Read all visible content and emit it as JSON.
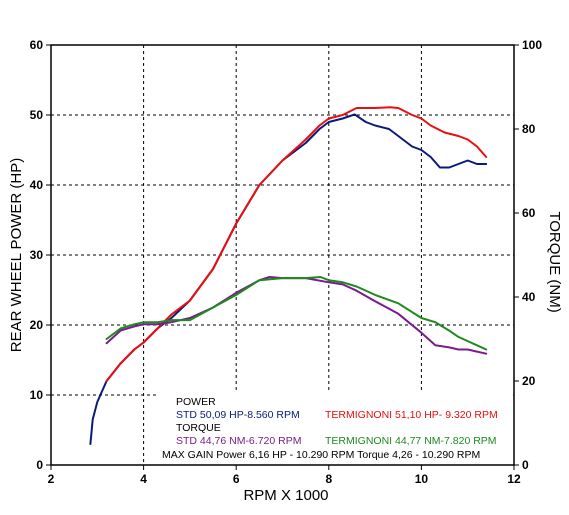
{
  "chart_data": {
    "type": "line",
    "xlabel": "RPM X 1000",
    "ylabel_left": "REAR WHEEL POWER (HP)",
    "ylabel_right": "TORQUE (NM)",
    "xlim": [
      2,
      12
    ],
    "ylim_left": [
      0,
      60
    ],
    "ylim_right": [
      0,
      100
    ],
    "x_ticks": [
      "2",
      "4",
      "6",
      "8",
      "10",
      "12"
    ],
    "y_left_ticks": [
      "0",
      "10",
      "20",
      "30",
      "40",
      "50",
      "60"
    ],
    "y_right_ticks": [
      "0",
      "20",
      "40",
      "60",
      "80",
      "100"
    ],
    "grid": true,
    "series": [
      {
        "name": "STD",
        "quantity": "power",
        "axis": "left",
        "color": "#0a1a7a",
        "x": [
          2.85,
          2.9,
          3.0,
          3.2,
          3.5,
          3.8,
          4.0,
          4.3,
          4.6,
          5.0,
          5.5,
          6.0,
          6.5,
          7.0,
          7.5,
          7.8,
          8.0,
          8.3,
          8.56,
          8.8,
          9.0,
          9.3,
          9.5,
          9.8,
          10.0,
          10.2,
          10.4,
          10.6,
          10.8,
          11.0,
          11.2,
          11.4
        ],
        "y": [
          3,
          6.5,
          9,
          12,
          14.5,
          16.5,
          17.5,
          19.5,
          21,
          23.5,
          28,
          34.5,
          40,
          43.5,
          46,
          48,
          49,
          49.5,
          50.09,
          49,
          48.5,
          48,
          47,
          45.5,
          45,
          44,
          42.5,
          42.5,
          43,
          43.5,
          43,
          43
        ]
      },
      {
        "name": "TERMIGNONI",
        "quantity": "power",
        "axis": "left",
        "color": "#e80f0f",
        "x": [
          3.2,
          3.5,
          3.8,
          4.0,
          4.3,
          4.6,
          5.0,
          5.5,
          6.0,
          6.5,
          7.0,
          7.5,
          7.8,
          8.0,
          8.3,
          8.6,
          9.0,
          9.32,
          9.5,
          9.8,
          10.0,
          10.2,
          10.5,
          10.8,
          11.0,
          11.2,
          11.4
        ],
        "y": [
          12,
          14.5,
          16.5,
          17.5,
          19.5,
          21.5,
          23.5,
          28,
          34.5,
          40,
          43.5,
          46.5,
          48.5,
          49.5,
          50,
          51,
          51,
          51.1,
          51,
          50,
          49.5,
          48.5,
          47.5,
          47,
          46.5,
          45.5,
          44
        ]
      },
      {
        "name": "STD",
        "quantity": "torque",
        "axis": "right",
        "color": "#7a1b8f",
        "x": [
          3.2,
          3.5,
          3.8,
          4.0,
          4.3,
          4.6,
          5.0,
          5.5,
          6.0,
          6.5,
          6.72,
          7.0,
          7.5,
          8.0,
          8.3,
          8.6,
          9.0,
          9.5,
          10.0,
          10.3,
          10.6,
          10.8,
          11.0,
          11.2,
          11.4
        ],
        "y": [
          29,
          32,
          33,
          33.5,
          33.5,
          34,
          35,
          37.5,
          41,
          44,
          44.76,
          44.5,
          44.5,
          43.5,
          43,
          41.5,
          39,
          36,
          31.5,
          28.5,
          28,
          27.5,
          27.5,
          27,
          26.5
        ]
      },
      {
        "name": "TERMIGNONI",
        "quantity": "torque",
        "axis": "right",
        "color": "#1e8a1e",
        "x": [
          3.2,
          3.5,
          3.8,
          4.0,
          4.3,
          4.6,
          5.0,
          5.5,
          6.0,
          6.5,
          7.0,
          7.5,
          7.82,
          8.0,
          8.3,
          8.6,
          9.0,
          9.5,
          10.0,
          10.3,
          10.6,
          10.8,
          11.0,
          11.2,
          11.4
        ],
        "y": [
          30,
          32.5,
          33.5,
          34,
          34,
          34.5,
          34.5,
          37.5,
          40.5,
          44,
          44.5,
          44.5,
          44.77,
          44,
          43.5,
          42.5,
          40.5,
          38.5,
          35,
          34,
          32,
          30.5,
          29.5,
          28.5,
          27.5
        ]
      }
    ],
    "legend_box": {
      "power_heading": "POWER",
      "power_std": "STD  50,09 HP-8.560 RPM",
      "power_termi": "TERMIGNONI 51,10 HP- 9.320 RPM",
      "torque_heading": "TORQUE",
      "torque_std": "STD  44,76 NM-6.720 RPM",
      "torque_termi": "TERMIGNONI  44,77 NM-7.820 RPM",
      "max_gain": "MAX GAIN Power 6,16 HP - 10.290 RPM    Torque 4,26 - 10.290 RPM",
      "colors": {
        "heading": "#000000",
        "std_power": "#0a1a7a",
        "termi_power": "#e80f0f",
        "std_torque": "#7a1b8f",
        "termi_torque": "#1e8a1e"
      }
    }
  }
}
